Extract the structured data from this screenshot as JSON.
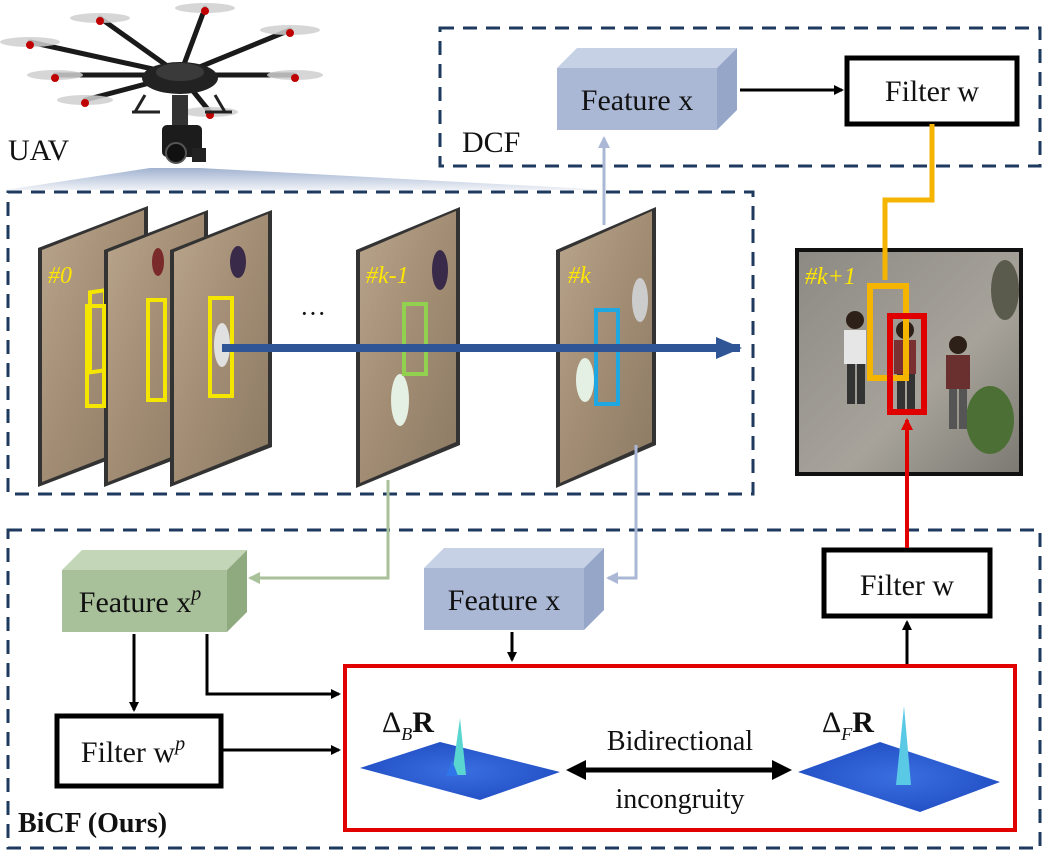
{
  "labels": {
    "uav": "UAV",
    "dcf": "DCF",
    "bicf": "BiCF (Ours)",
    "ellipsis": "···",
    "bidirectional": "Bidirectional",
    "incongruity": "incongruity"
  },
  "frames": [
    {
      "label": "#0"
    },
    {
      "label": "#k-1"
    },
    {
      "label": "#k"
    },
    {
      "label": "#k+1"
    }
  ],
  "blocks": {
    "dcf_feature": "Feature x",
    "dcf_filter": "Filter w",
    "bicf_feature_p": "Feature x",
    "bicf_feature_p_sup": "p",
    "bicf_feature": "Feature x",
    "bicf_filter": "Filter w",
    "bicf_filter_p": "Filter w",
    "bicf_filter_p_sup": "p"
  },
  "responses": {
    "backward_label": "Δ",
    "backward_sub": "B",
    "backward_r": "R",
    "forward_label": "Δ",
    "forward_sub": "F",
    "forward_r": "R"
  },
  "colors": {
    "dashed_border": "#1f3a5f",
    "dcf_feature": "#aab8d6",
    "bicf_feature_p": "#a9c19a",
    "blue_arrow": "#2f5597",
    "yellow_box": "#f5e600",
    "green_box": "#92d050",
    "cyan_box": "#1ea7e1",
    "orange_arrow": "#f4b400",
    "red": "#e00000",
    "frame_label": "#ffe600"
  }
}
